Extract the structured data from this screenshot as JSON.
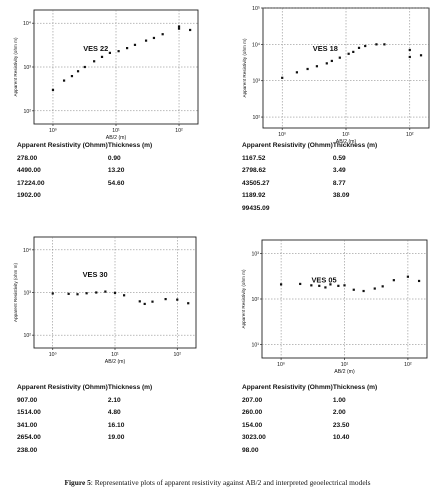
{
  "chart_data": [
    {
      "type": "scatter",
      "title": "VES 22",
      "xlabel": "AB/2 (m)",
      "ylabel": "Apparent Resistivity (ohm m)",
      "x_scale": "log",
      "y_scale": "log",
      "xlim": [
        0.5,
        200
      ],
      "ylim": [
        50,
        20000
      ],
      "x_ticks": [
        1,
        10,
        100
      ],
      "x_tick_labels": [
        "10⁰",
        "10¹",
        "10²"
      ],
      "y_ticks": [
        100,
        1000,
        10000
      ],
      "y_tick_labels": [
        "10²",
        "10³",
        "10⁴"
      ],
      "grid": true,
      "points": [
        [
          1,
          300
        ],
        [
          1.5,
          490
        ],
        [
          2,
          620
        ],
        [
          2.5,
          800
        ],
        [
          3.2,
          1000
        ],
        [
          4.5,
          1350
        ],
        [
          6,
          1700
        ],
        [
          8,
          2100
        ],
        [
          11,
          2300
        ],
        [
          15,
          2700
        ],
        [
          20,
          3200
        ],
        [
          30,
          4000
        ],
        [
          40,
          4600
        ],
        [
          55,
          5600
        ],
        [
          100,
          7500
        ],
        [
          100,
          8400
        ],
        [
          150,
          7000
        ]
      ],
      "table": {
        "headers": [
          "Apparent Resistivity (Ohmm)",
          "Thickness (m)"
        ],
        "rows": [
          [
            "278.00",
            "0.90"
          ],
          [
            "4490.00",
            "13.20"
          ],
          [
            "17224.00",
            "54.60"
          ],
          [
            "1902.00",
            ""
          ]
        ]
      }
    },
    {
      "type": "scatter",
      "title": "VES 18",
      "xlabel": "AB/2 (m)",
      "ylabel": "Apparent Resistivity (ohm m)",
      "x_scale": "log",
      "y_scale": "log",
      "xlim": [
        0.5,
        200
      ],
      "ylim": [
        50,
        100000
      ],
      "x_ticks": [
        1,
        10,
        100
      ],
      "x_tick_labels": [
        "10⁰",
        "10¹",
        "10²"
      ],
      "y_ticks": [
        100,
        1000,
        10000,
        100000
      ],
      "y_tick_labels": [
        "10²",
        "10³",
        "10⁴",
        "10⁵"
      ],
      "grid": true,
      "points": [
        [
          1,
          1200
        ],
        [
          1.7,
          1700
        ],
        [
          2.5,
          2100
        ],
        [
          3.5,
          2500
        ],
        [
          5,
          3000
        ],
        [
          6,
          3500
        ],
        [
          8,
          4300
        ],
        [
          11,
          5500
        ],
        [
          13,
          6200
        ],
        [
          16,
          8000
        ],
        [
          20,
          9000
        ],
        [
          30,
          10000
        ],
        [
          40,
          10000
        ],
        [
          100,
          7000
        ],
        [
          100,
          4500
        ],
        [
          150,
          5000
        ]
      ],
      "table": {
        "headers": [
          "Apparent Resistivity (Ohmm)",
          "Thickness (m)"
        ],
        "rows": [
          [
            "1167.52",
            "0.59"
          ],
          [
            "2798.62",
            "3.49"
          ],
          [
            "43505.27",
            "8.77"
          ],
          [
            "1189.92",
            "38.09"
          ],
          [
            "99435.09",
            ""
          ]
        ]
      }
    },
    {
      "type": "scatter",
      "title": "VES 30",
      "xlabel": "AB/2 (m)",
      "ylabel": "Apparent Resistivity (ohm m)",
      "x_scale": "log",
      "y_scale": "log",
      "xlim": [
        0.5,
        200
      ],
      "ylim": [
        50,
        20000
      ],
      "x_ticks": [
        1,
        10,
        100
      ],
      "x_tick_labels": [
        "10⁰",
        "10¹",
        "10²"
      ],
      "y_ticks": [
        100,
        1000,
        10000
      ],
      "y_tick_labels": [
        "10²",
        "10³",
        "10⁴"
      ],
      "grid": true,
      "points": [
        [
          1,
          950
        ],
        [
          1.8,
          930
        ],
        [
          2.5,
          910
        ],
        [
          3.5,
          960
        ],
        [
          5,
          1000
        ],
        [
          7,
          1050
        ],
        [
          10,
          980
        ],
        [
          14,
          860
        ],
        [
          25,
          620
        ],
        [
          30,
          540
        ],
        [
          40,
          610
        ],
        [
          65,
          700
        ],
        [
          100,
          680
        ],
        [
          150,
          560
        ]
      ],
      "table": {
        "headers": [
          "Apparent Resistivity (Ohmm)",
          "Thickness (m)"
        ],
        "rows": [
          [
            "907.00",
            "2.10"
          ],
          [
            "1514.00",
            "4.80"
          ],
          [
            "341.00",
            "16.10"
          ],
          [
            "2654.00",
            "19.00"
          ],
          [
            "238.00",
            ""
          ]
        ]
      }
    },
    {
      "type": "scatter",
      "title": "VES 05",
      "xlabel": "AB/2 (m)",
      "ylabel": "Apparent Resistivity (ohm m)",
      "x_scale": "log",
      "y_scale": "log",
      "xlim": [
        0.5,
        200
      ],
      "ylim": [
        5,
        2000
      ],
      "x_ticks": [
        1,
        10,
        100
      ],
      "x_tick_labels": [
        "10⁰",
        "10¹",
        "10²"
      ],
      "y_ticks": [
        10,
        100,
        1000
      ],
      "y_tick_labels": [
        "10¹",
        "10²",
        "10³"
      ],
      "grid": true,
      "points": [
        [
          1,
          210
        ],
        [
          2,
          215
        ],
        [
          3,
          200
        ],
        [
          4,
          195
        ],
        [
          5,
          180
        ],
        [
          6,
          210
        ],
        [
          8,
          195
        ],
        [
          10,
          200
        ],
        [
          14,
          160
        ],
        [
          20,
          150
        ],
        [
          30,
          170
        ],
        [
          40,
          190
        ],
        [
          60,
          260
        ],
        [
          100,
          310
        ],
        [
          150,
          250
        ]
      ],
      "table": {
        "headers": [
          "Apparent Resistivity (Ohmm)",
          "Thickness (m)"
        ],
        "rows": [
          [
            "207.00",
            "1.00"
          ],
          [
            "260.00",
            "2.00"
          ],
          [
            "154.00",
            "23.50"
          ],
          [
            "3023.00",
            "10.40"
          ],
          [
            "98.00",
            ""
          ]
        ]
      }
    }
  ],
  "caption": {
    "label": "Figure 5",
    "text": ": Representative plots of apparent resistivity against AB/2 and interpreted geoelectrical models"
  }
}
